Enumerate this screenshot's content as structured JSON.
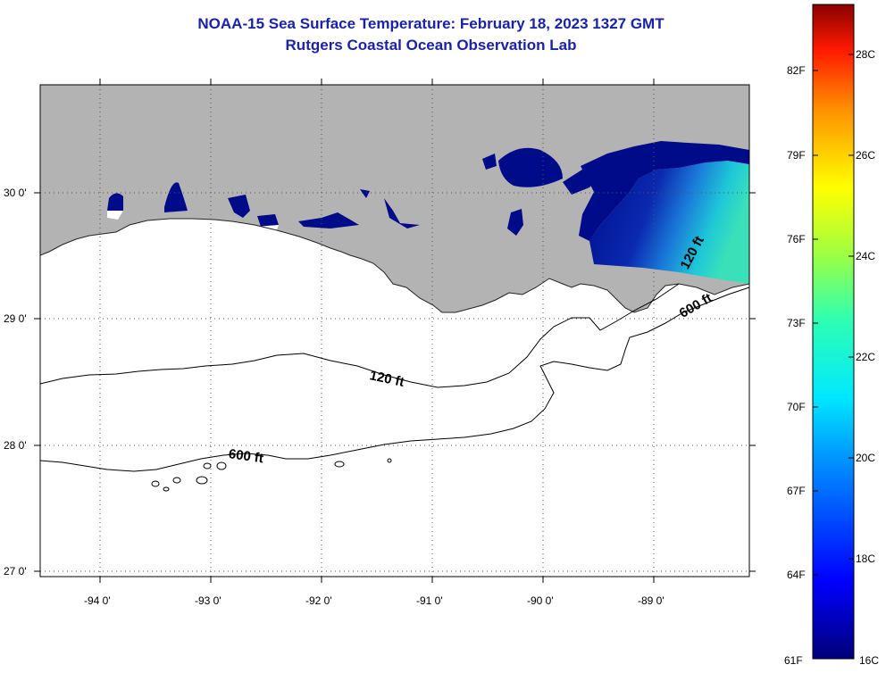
{
  "header": {
    "title": "NOAA-15 Sea Surface Temperature:  February 18, 2023 1327 GMT",
    "subtitle": "Rutgers Coastal Ocean Observation Lab"
  },
  "map": {
    "lat_labels": [
      "30 0'",
      "29 0'",
      "28 0'",
      "27 0'"
    ],
    "lon_labels": [
      "-94 0'",
      "-93 0'",
      "-92 0'",
      "-91 0'",
      "-90 0'",
      "-89 0'"
    ],
    "contour_labels": {
      "c120_west": "120 ft",
      "c600_west": "600 ft",
      "c120_east": "120 ft",
      "c600_east": "600 ft"
    },
    "colors": {
      "land": "#b3b3b3",
      "ocean": "#ffffff",
      "sst_cold": "#000b8a",
      "sst_warm": "#22d8c8"
    }
  },
  "colorbar": {
    "fahrenheit_labels": [
      "82F",
      "79F",
      "76F",
      "73F",
      "70F",
      "67F",
      "64F",
      "61F"
    ],
    "celsius_labels": [
      "28C",
      "26C",
      "24C",
      "22C",
      "20C",
      "18C",
      "16C"
    ],
    "range_f": [
      61,
      84
    ],
    "range_c": [
      16,
      29
    ]
  }
}
